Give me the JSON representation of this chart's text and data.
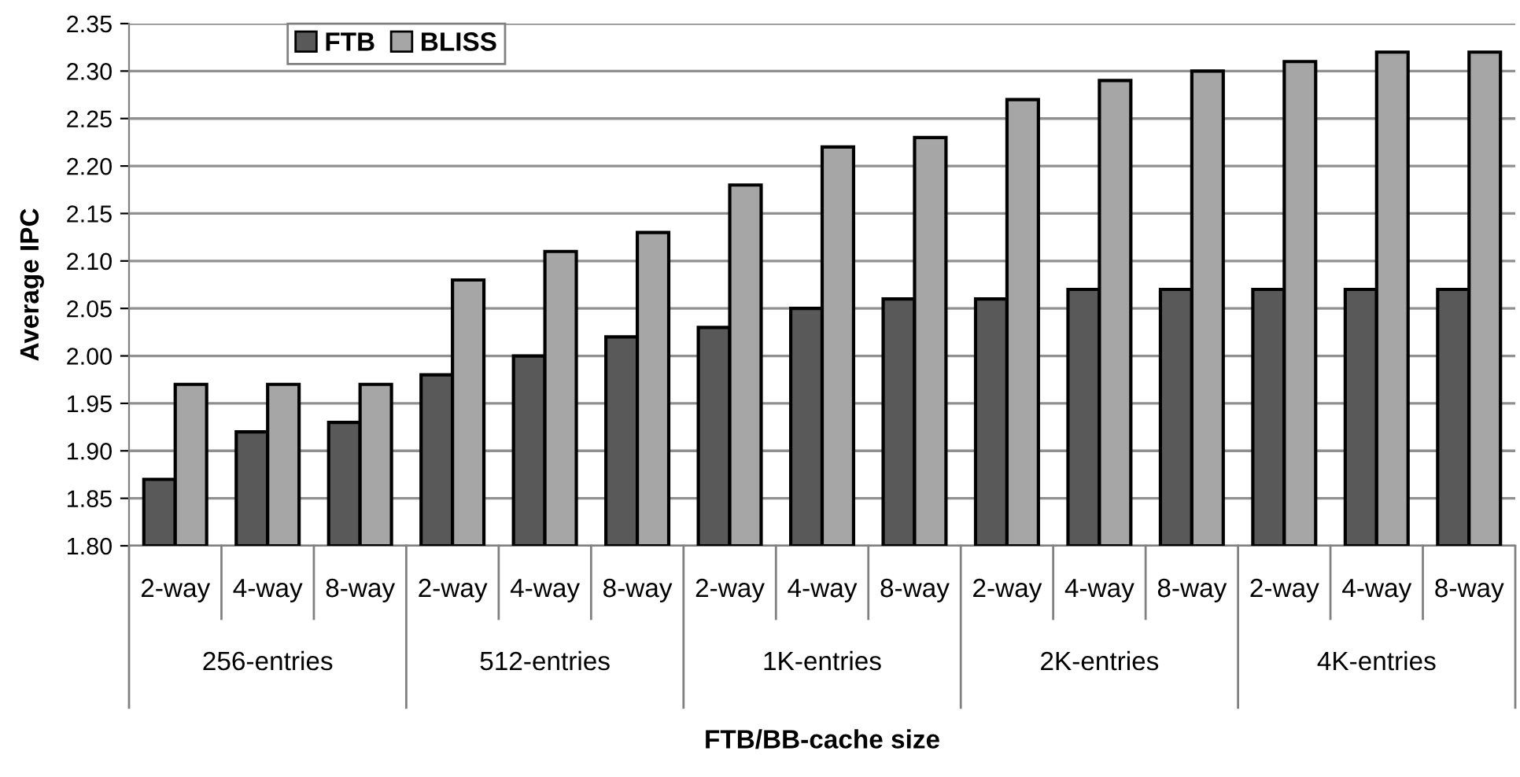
{
  "chart_data": {
    "type": "bar",
    "xlabel": "FTB/BB-cache size",
    "ylabel": "Average IPC",
    "categories": [
      "2-way",
      "4-way",
      "8-way",
      "2-way",
      "4-way",
      "8-way",
      "2-way",
      "4-way",
      "8-way",
      "2-way",
      "4-way",
      "8-way",
      "2-way",
      "4-way",
      "8-way"
    ],
    "annotations": [
      "256-entries",
      "512-entries",
      "1K-entries",
      "2K-entries",
      "4K-entries"
    ],
    "series": [
      {
        "name": "FTB",
        "color": "#595959",
        "values": [
          1.87,
          1.92,
          1.93,
          1.98,
          2.0,
          2.02,
          2.03,
          2.05,
          2.06,
          2.06,
          2.07,
          2.07,
          2.07,
          2.07,
          2.07
        ]
      },
      {
        "name": "BLISS",
        "color": "#a6a6a6",
        "values": [
          1.97,
          1.97,
          1.97,
          2.08,
          2.11,
          2.13,
          2.18,
          2.22,
          2.23,
          2.27,
          2.29,
          2.3,
          2.31,
          2.32,
          2.32
        ]
      }
    ],
    "ylim": [
      1.8,
      2.35
    ],
    "yticks": [
      {
        "value": 1.8,
        "label": "1.80"
      },
      {
        "value": 1.85,
        "label": "1.85"
      },
      {
        "value": 1.9,
        "label": "1.90"
      },
      {
        "value": 1.95,
        "label": "1.95"
      },
      {
        "value": 2.0,
        "label": "2.00"
      },
      {
        "value": 2.05,
        "label": "2.05"
      },
      {
        "value": 2.1,
        "label": "2.10"
      },
      {
        "value": 2.15,
        "label": "2.15"
      },
      {
        "value": 2.2,
        "label": "2.20"
      },
      {
        "value": 2.25,
        "label": "2.25"
      },
      {
        "value": 2.3,
        "label": "2.30"
      },
      {
        "value": 2.35,
        "label": "2.35"
      }
    ],
    "grid": "y",
    "legend": "top left"
  }
}
